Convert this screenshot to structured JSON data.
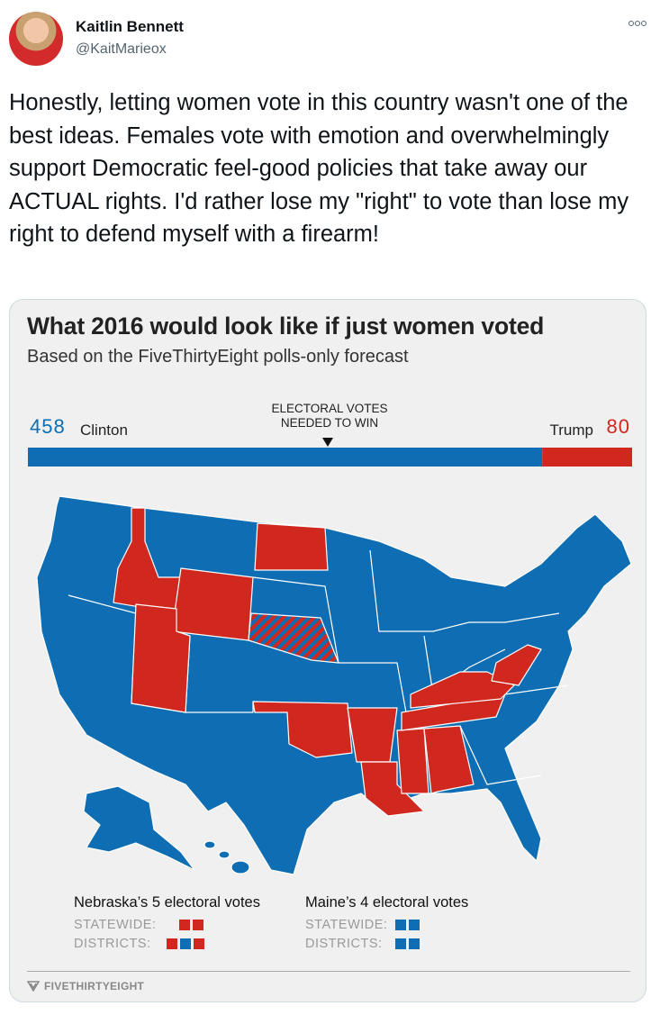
{
  "header": {
    "name": "Kaitlin Bennett",
    "handle": "@KaitMarieox"
  },
  "tweet": {
    "text": "Honestly, letting women vote in this country wasn't one of the best ideas. Females vote with emotion and overwhelmingly support Democratic feel-good policies that take away our ACTUAL rights. I'd rather lose my \"right\" to vote than lose my right to defend myself with a firearm!"
  },
  "card": {
    "title": "What 2016 would look like if just women voted",
    "subtitle": "Based on the FiveThirtyEight polls-only forecast",
    "electoral": {
      "clinton": {
        "label": "Clinton",
        "votes": 458,
        "color": "#0f6db3"
      },
      "trump": {
        "label": "Trump",
        "votes": 80,
        "color": "#d0271f"
      },
      "threshold_label": [
        "ELECTORAL VOTES",
        "NEEDED TO WIN"
      ]
    },
    "legend": {
      "nebraska": {
        "title": "Nebraska’s 5 electoral votes",
        "statewide": "STATEWIDE:",
        "districts": "DISTRICTS:"
      },
      "maine": {
        "title": "Maine’s 4 electoral votes",
        "statewide": "STATEWIDE:",
        "districts": "DISTRICTS:"
      }
    },
    "footer": "FIVETHIRTYEIGHT"
  }
}
